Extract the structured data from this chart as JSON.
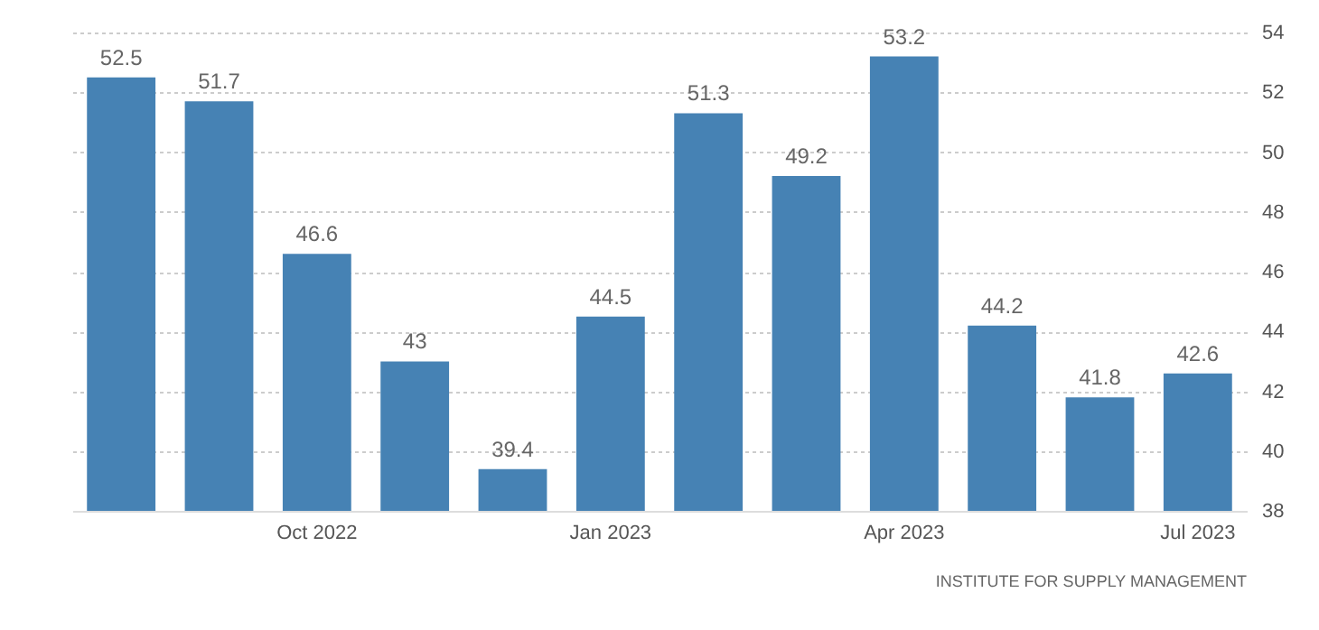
{
  "chart_data": {
    "type": "bar",
    "categories": [
      null,
      null,
      "Oct 2022",
      null,
      null,
      "Jan 2023",
      null,
      null,
      "Apr 2023",
      null,
      null,
      "Jul 2023"
    ],
    "values": [
      52.5,
      51.7,
      46.6,
      43,
      39.4,
      44.5,
      51.3,
      49.2,
      53.2,
      44.2,
      41.8,
      42.6
    ],
    "color": "#4682b4",
    "ylim": [
      38,
      54
    ],
    "yticks": [
      38,
      40,
      42,
      44,
      46,
      48,
      50,
      52,
      54
    ],
    "grid": "y",
    "data_labels": true,
    "annotations": [
      "INSTITUTE FOR SUPPLY MANAGEMENT"
    ]
  }
}
